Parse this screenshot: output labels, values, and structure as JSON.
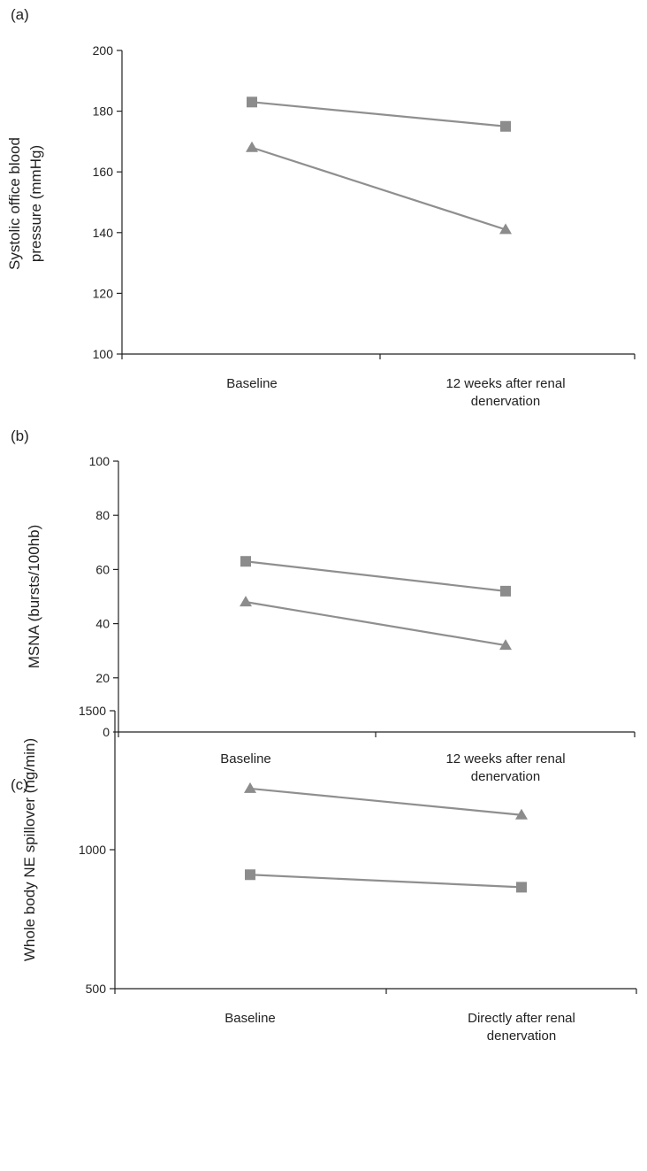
{
  "chart_data": [
    {
      "panel_label": "(a)",
      "type": "line",
      "categories": [
        "Baseline",
        "12 weeks after renal denervation"
      ],
      "category_lines": [
        [
          "Baseline"
        ],
        [
          "12 weeks after renal",
          "denervation"
        ]
      ],
      "ylabel_lines": [
        "Systolic office blood",
        "pressure (mmHg)"
      ],
      "ylim": [
        100,
        200
      ],
      "yticks": [
        100,
        120,
        140,
        160,
        180,
        200
      ],
      "series": [
        {
          "marker": "square",
          "values": [
            183,
            175
          ]
        },
        {
          "marker": "triangle",
          "values": [
            168,
            141
          ]
        }
      ],
      "series_color": "#8c8c8c"
    },
    {
      "panel_label": "(b)",
      "type": "line",
      "categories": [
        "Baseline",
        "12 weeks after renal denervation"
      ],
      "category_lines": [
        [
          "Baseline"
        ],
        [
          "12 weeks after renal",
          "denervation"
        ]
      ],
      "ylabel_lines": [
        "MSNA  (bursts/100hb)"
      ],
      "ylim": [
        0,
        100
      ],
      "yticks": [
        0,
        20,
        40,
        60,
        80,
        100
      ],
      "series": [
        {
          "marker": "square",
          "values": [
            63,
            52
          ]
        },
        {
          "marker": "triangle",
          "values": [
            48,
            32
          ]
        }
      ],
      "series_color": "#8c8c8c"
    },
    {
      "panel_label": "(c)",
      "type": "line",
      "categories": [
        "Baseline",
        "Directly after renal denervation"
      ],
      "category_lines": [
        [
          "Baseline"
        ],
        [
          "Directly after renal",
          "denervation"
        ]
      ],
      "ylabel_lines": [
        "Whole body NE spillover (ng/min)"
      ],
      "ylim": [
        500,
        1500
      ],
      "yticks": [
        500,
        1000,
        1500
      ],
      "series": [
        {
          "marker": "square",
          "values": [
            910,
            865
          ]
        },
        {
          "marker": "triangle",
          "values": [
            1220,
            1125
          ]
        }
      ],
      "series_color": "#8c8c8c"
    }
  ]
}
